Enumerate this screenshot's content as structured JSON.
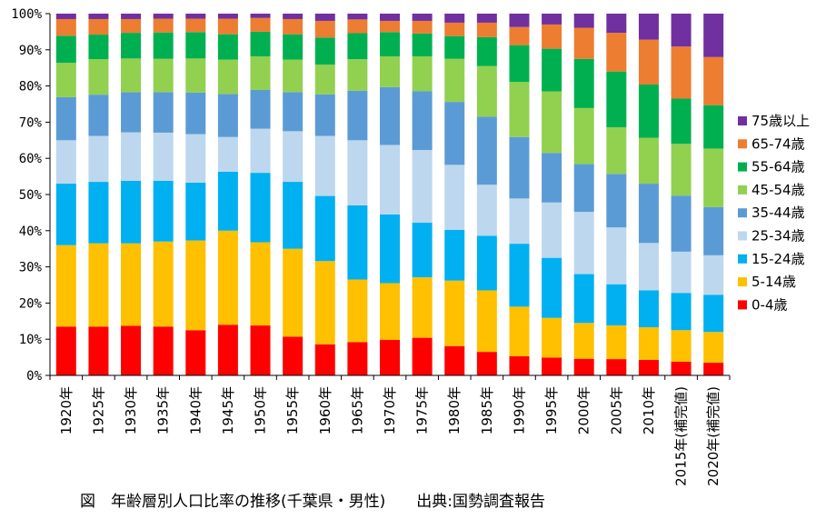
{
  "chart_data": {
    "type": "bar",
    "stacked": true,
    "percent": true,
    "categories": [
      "1920年",
      "1925年",
      "1930年",
      "1935年",
      "1940年",
      "1945年",
      "1950年",
      "1955年",
      "1960年",
      "1965年",
      "1970年",
      "1975年",
      "1980年",
      "1985年",
      "1990年",
      "1995年",
      "2000年",
      "2005年",
      "2010年",
      "2015年(補完値)",
      "2020年(補完値)"
    ],
    "ylim": [
      0,
      100
    ],
    "y_ticks": [
      "0%",
      "10%",
      "20%",
      "30%",
      "40%",
      "50%",
      "60%",
      "70%",
      "80%",
      "90%",
      "100%"
    ],
    "grid": false,
    "legend_position": "right",
    "series": [
      {
        "name": "0-4歳",
        "color": "#ff0000",
        "values": [
          13.5,
          13.5,
          13.7,
          13.5,
          12.5,
          14.0,
          13.8,
          10.7,
          8.6,
          9.2,
          9.8,
          10.4,
          8.1,
          6.5,
          5.3,
          4.9,
          4.6,
          4.5,
          4.3,
          3.8,
          3.5
        ]
      },
      {
        "name": "5-14歳",
        "color": "#ffc000",
        "values": [
          22.5,
          23.0,
          22.8,
          23.5,
          24.8,
          26.0,
          23.0,
          24.3,
          23.0,
          17.3,
          15.7,
          16.7,
          18.1,
          17.0,
          13.7,
          11.0,
          9.9,
          9.3,
          9.0,
          8.7,
          8.5
        ]
      },
      {
        "name": "15-24歳",
        "color": "#00b0f0",
        "values": [
          17.0,
          17.0,
          17.3,
          16.8,
          16.0,
          16.3,
          19.2,
          18.5,
          18.0,
          20.5,
          19.0,
          15.1,
          14.0,
          15.1,
          17.4,
          16.6,
          13.5,
          11.4,
          10.2,
          10.3,
          10.3
        ]
      },
      {
        "name": "25-34歳",
        "color": "#bdd7ee",
        "values": [
          12.0,
          12.7,
          13.4,
          13.3,
          13.4,
          9.6,
          12.2,
          14.0,
          16.6,
          18.0,
          19.2,
          20.1,
          18.0,
          14.1,
          12.5,
          15.3,
          17.2,
          15.7,
          13.1,
          11.4,
          10.9
        ]
      },
      {
        "name": "35-44歳",
        "color": "#5b9bd5",
        "values": [
          11.9,
          11.4,
          11.1,
          11.2,
          11.5,
          11.9,
          10.7,
          10.8,
          11.5,
          13.7,
          16.0,
          16.3,
          17.4,
          18.8,
          17.0,
          13.7,
          13.2,
          14.8,
          16.4,
          15.5,
          13.3
        ]
      },
      {
        "name": "45-54歳",
        "color": "#92d050",
        "values": [
          9.5,
          9.8,
          9.3,
          9.2,
          9.4,
          9.5,
          9.3,
          9.0,
          8.2,
          8.7,
          8.5,
          9.6,
          11.9,
          14.0,
          15.2,
          17.0,
          15.5,
          12.9,
          12.7,
          14.3,
          16.2
        ]
      },
      {
        "name": "55-64歳",
        "color": "#00b050",
        "values": [
          7.5,
          6.8,
          7.1,
          7.3,
          7.3,
          7.0,
          6.8,
          7.0,
          7.5,
          7.2,
          6.7,
          6.3,
          6.3,
          8.0,
          10.2,
          11.8,
          13.6,
          15.4,
          14.7,
          12.5,
          12.0
        ]
      },
      {
        "name": "65-74歳",
        "color": "#ed7d31",
        "values": [
          4.6,
          4.3,
          3.8,
          3.8,
          3.7,
          4.3,
          3.8,
          4.2,
          4.6,
          3.8,
          3.1,
          3.5,
          3.7,
          4.0,
          5.0,
          6.7,
          8.6,
          10.7,
          12.4,
          14.4,
          13.3
        ]
      },
      {
        "name": "75歳以上",
        "color": "#7030a0",
        "values": [
          1.5,
          1.5,
          1.5,
          1.4,
          1.4,
          1.4,
          1.2,
          1.5,
          2.0,
          1.6,
          2.0,
          2.0,
          2.5,
          2.5,
          3.7,
          3.0,
          3.9,
          5.3,
          7.2,
          9.1,
          12.0
        ]
      }
    ]
  },
  "caption": "図　年齢層別人口比率の推移(千葉県・男性)　　出典:国勢調査報告"
}
